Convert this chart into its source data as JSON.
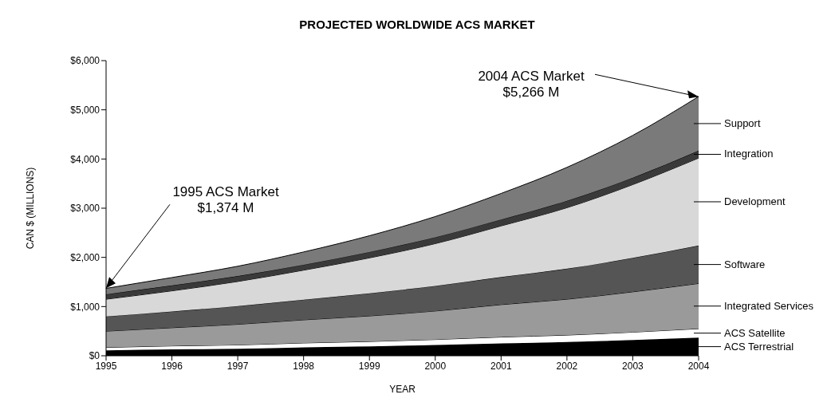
{
  "chart_data": {
    "type": "area",
    "title": "PROJECTED WORLDWIDE ACS MARKET",
    "xlabel": "YEAR",
    "ylabel": "CAN $ (MILLIONS)",
    "stacked": true,
    "x": [
      1995,
      1996,
      1997,
      1998,
      1999,
      2000,
      2001,
      2002,
      2003,
      2004
    ],
    "xlim": [
      1995,
      2004
    ],
    "xticks": [
      1995,
      1996,
      1997,
      1998,
      1999,
      2000,
      2001,
      2002,
      2003,
      2004
    ],
    "ylim": [
      0,
      6000
    ],
    "yticks": [
      {
        "value": 0,
        "label": "$0"
      },
      {
        "value": 1000,
        "label": "$1,000"
      },
      {
        "value": 2000,
        "label": "$2,000"
      },
      {
        "value": 3000,
        "label": "$3,000"
      },
      {
        "value": 4000,
        "label": "$4,000"
      },
      {
        "value": 5000,
        "label": "$5,000"
      },
      {
        "value": 6000,
        "label": "$6,000"
      }
    ],
    "legend": "right",
    "series": [
      {
        "name": "ACS Terrestrial",
        "color": "#000000",
        "values": [
          110,
          130,
          140,
          170,
          190,
          220,
          250,
          280,
          320,
          370
        ]
      },
      {
        "name": "ACS Satellite",
        "color": "#ffffff",
        "values": [
          60,
          70,
          80,
          90,
          100,
          110,
          130,
          140,
          160,
          180
        ]
      },
      {
        "name": "Integrated Services",
        "color": "#9a9a9a",
        "values": [
          330,
          370,
          420,
          470,
          520,
          580,
          660,
          730,
          820,
          920
        ]
      },
      {
        "name": "Software",
        "color": "#555555",
        "values": [
          300,
          330,
          370,
          410,
          460,
          510,
          560,
          620,
          690,
          770
        ]
      },
      {
        "name": "Development",
        "color": "#d8d8d8",
        "values": [
          350,
          420,
          500,
          600,
          720,
          860,
          1040,
          1240,
          1490,
          1780
        ]
      },
      {
        "name": "Integration",
        "color": "#3a3a3a",
        "values": [
          100,
          110,
          110,
          110,
          120,
          130,
          130,
          140,
          140,
          150
        ]
      },
      {
        "name": "Support",
        "color": "#7a7a7a",
        "values": [
          120,
          160,
          200,
          260,
          330,
          420,
          530,
          680,
          860,
          1100
        ]
      }
    ],
    "annotations": [
      {
        "text": "1995 ACS Market\n$1,374 M",
        "x": 1995,
        "y": 1374
      },
      {
        "text": "2004 ACS Market\n$5,266 M",
        "x": 2004,
        "y": 5266
      }
    ]
  }
}
